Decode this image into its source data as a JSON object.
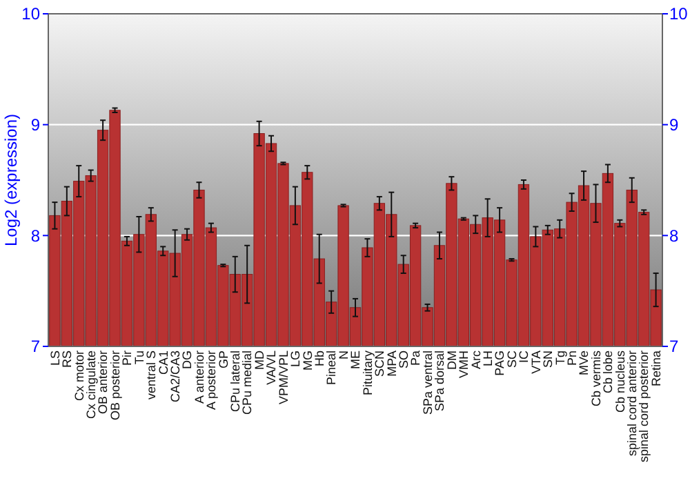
{
  "chart_data": {
    "type": "bar",
    "ylabel": "Log2 (expression)",
    "categories": [
      "LS",
      "RS",
      "Cx motor",
      "Cx cingulate",
      "OB anterior",
      "OB posterior",
      "Pir",
      "Tu",
      "ventral S",
      "CA1",
      "CA2/CA3",
      "DG",
      "A anterior",
      "A posterior",
      "GP",
      "CPu lateral",
      "CPu medial",
      "MD",
      "VA/VL",
      "VPM/VPL",
      "LG",
      "MG",
      "Hb",
      "Pineal",
      "N",
      "ME",
      "Pituitary",
      "SCN",
      "MPA",
      "SO",
      "Pa",
      "SPa ventral",
      "SPa dorsal",
      "DM",
      "VMH",
      "Arc",
      "LH",
      "PAG",
      "SC",
      "IC",
      "VTA",
      "SN",
      "Tg",
      "Pn",
      "MVe",
      "Cb vermis",
      "Cb lobe",
      "Cb nucleus",
      "spinal cord anterior",
      "spinal cord posterior",
      "Retina"
    ],
    "values": [
      8.18,
      8.31,
      8.49,
      8.54,
      8.95,
      9.13,
      7.95,
      8.01,
      8.19,
      7.86,
      7.84,
      8.01,
      8.41,
      8.07,
      7.73,
      7.65,
      7.65,
      8.92,
      8.83,
      8.65,
      8.27,
      8.57,
      7.79,
      7.4,
      8.27,
      7.35,
      7.89,
      8.29,
      8.19,
      7.74,
      8.09,
      7.35,
      7.91,
      8.47,
      8.15,
      8.1,
      8.16,
      8.14,
      7.78,
      8.46,
      7.99,
      8.05,
      8.06,
      8.3,
      8.45,
      8.29,
      8.56,
      8.11,
      8.41,
      8.21,
      7.51
    ],
    "errors": [
      0.12,
      0.13,
      0.14,
      0.05,
      0.09,
      0.02,
      0.04,
      0.16,
      0.06,
      0.04,
      0.21,
      0.05,
      0.07,
      0.04,
      0.01,
      0.16,
      0.26,
      0.11,
      0.07,
      0.01,
      0.17,
      0.06,
      0.22,
      0.1,
      0.01,
      0.08,
      0.08,
      0.06,
      0.2,
      0.08,
      0.02,
      0.03,
      0.12,
      0.06,
      0.01,
      0.08,
      0.17,
      0.11,
      0.01,
      0.04,
      0.09,
      0.04,
      0.08,
      0.08,
      0.13,
      0.17,
      0.08,
      0.03,
      0.11,
      0.02,
      0.15
    ],
    "color": "#b83232",
    "ylim": [
      7,
      10
    ],
    "yticks": [
      7,
      8,
      9,
      10
    ],
    "y2lim": [
      7,
      10
    ],
    "y2ticks": [
      7,
      8,
      9,
      10
    ],
    "grid": "y"
  }
}
